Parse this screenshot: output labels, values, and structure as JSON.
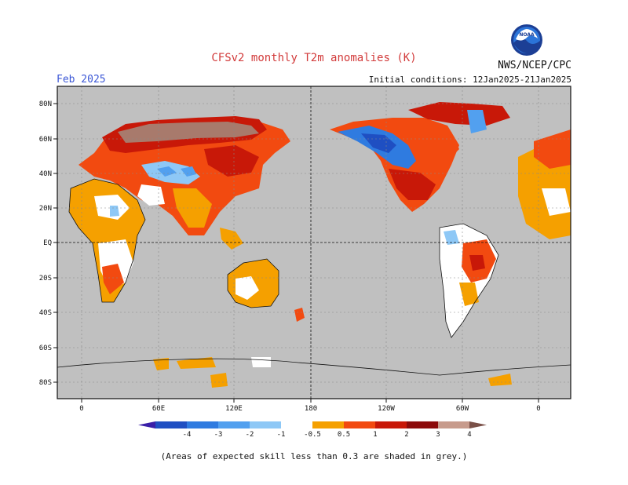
{
  "header": {
    "title": "CFSv2 monthly T2m anomalies (K)",
    "month": "Feb 2025",
    "initial_conditions": "Initial conditions: 12Jan2025-21Jan2025",
    "agency": "NWS/NCEP/CPC",
    "logo_text": "NOAA"
  },
  "map": {
    "lat_ticks": [
      "80N",
      "60N",
      "40N",
      "20N",
      "EQ",
      "20S",
      "40S",
      "60S",
      "80S"
    ],
    "lon_ticks": [
      "0",
      "60E",
      "120E",
      "180",
      "120W",
      "60W",
      "0"
    ],
    "colors": {
      "background": "#c0c0c0",
      "no_anomaly": "#ffffff"
    }
  },
  "colorbar": {
    "labels": [
      "-4",
      "-3",
      "-2",
      "-1",
      "-0.5",
      "0.5",
      "1",
      "2",
      "3",
      "4"
    ],
    "colors": [
      "#3a1fa8",
      "#1f4fc2",
      "#2f7be0",
      "#52a0ef",
      "#8ec8f6",
      "#ffffff",
      "#f5a000",
      "#f24a10",
      "#c81808",
      "#8c0b0b",
      "#c79b8c",
      "#7a5048"
    ]
  },
  "footer": {
    "note": "(Areas of expected skill less than 0.3 are shaded in grey.)"
  }
}
